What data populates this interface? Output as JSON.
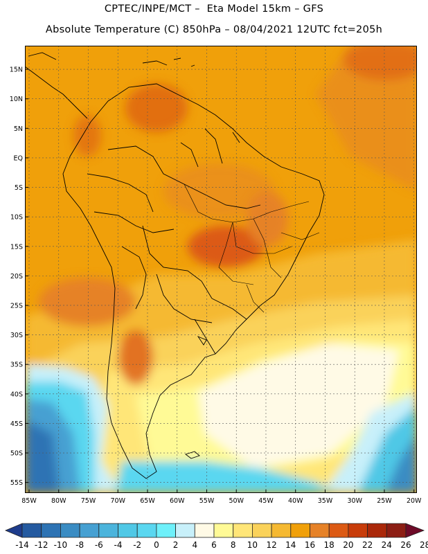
{
  "title_line1": "CPTEC/INPE/MCT –  Eta Model 15km – GFS",
  "title_line2": "Absolute Temperature (C) 850hPa – 08/04/2021 12UTC fct=205h",
  "lat_labels": [
    "15N",
    "10N",
    "5N",
    "EQ",
    "5S",
    "10S",
    "15S",
    "20S",
    "25S",
    "30S",
    "35S",
    "40S",
    "45S",
    "50S",
    "55S"
  ],
  "lon_labels": [
    "85W",
    "80W",
    "75W",
    "70W",
    "65W",
    "60W",
    "55W",
    "50W",
    "45W",
    "40W",
    "35W",
    "30W",
    "25W",
    "20W"
  ],
  "colorbar": {
    "labels": [
      "-14",
      "-12",
      "-10",
      "-8",
      "-6",
      "-4",
      "-2",
      "0",
      "2",
      "4",
      "6",
      "8",
      "10",
      "12",
      "14",
      "16",
      "18",
      "20",
      "22",
      "24",
      "26",
      "28"
    ],
    "colors": [
      "#1e3c8c",
      "#245aa0",
      "#2d73b4",
      "#3a8cc3",
      "#46a0d2",
      "#4bb4dc",
      "#50c8e6",
      "#5ad7f0",
      "#6ef0fa",
      "#c8f0fa",
      "#fffae6",
      "#fffa96",
      "#ffe678",
      "#fad25a",
      "#f5b932",
      "#f0a00a",
      "#e68228",
      "#dc5a14",
      "#c83c0a",
      "#aa280a",
      "#8c1e14",
      "#6e0a28"
    ]
  }
}
